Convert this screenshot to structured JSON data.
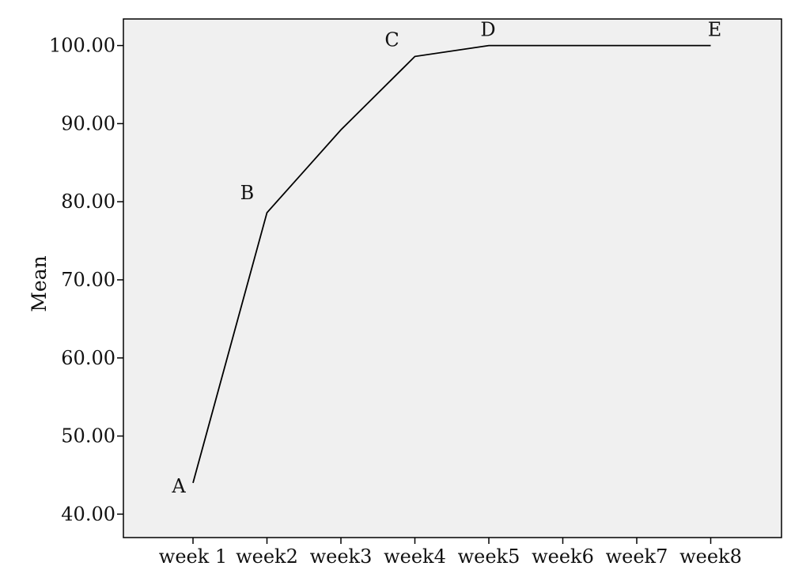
{
  "chart_data": {
    "type": "line",
    "title": "",
    "xlabel": "",
    "ylabel": "Mean",
    "categories": [
      "week 1",
      "week2",
      "week3",
      "week4",
      "week5",
      "week6",
      "week7",
      "week8"
    ],
    "y_ticks": [
      "40.00",
      "50.00",
      "60.00",
      "70.00",
      "80.00",
      "90.00",
      "100.00"
    ],
    "ylim": [
      37.0,
      103.4
    ],
    "grid": false,
    "background_color": "#f0f0f0",
    "line_color": "#000000",
    "series": [
      {
        "x": [
          "week 1",
          "week2",
          "week3",
          "week4",
          "week5",
          "week6",
          "week7",
          "week8"
        ],
        "values": [
          44.0,
          78.6,
          89.2,
          98.6,
          100.0,
          100.0,
          100.0,
          100.0
        ]
      }
    ],
    "annotations": [
      {
        "text": "A",
        "category": "week 1"
      },
      {
        "text": "B",
        "category": "week2"
      },
      {
        "text": "C",
        "category": "week4"
      },
      {
        "text": "D",
        "category": "week5"
      },
      {
        "text": "E",
        "category": "week8"
      }
    ]
  }
}
